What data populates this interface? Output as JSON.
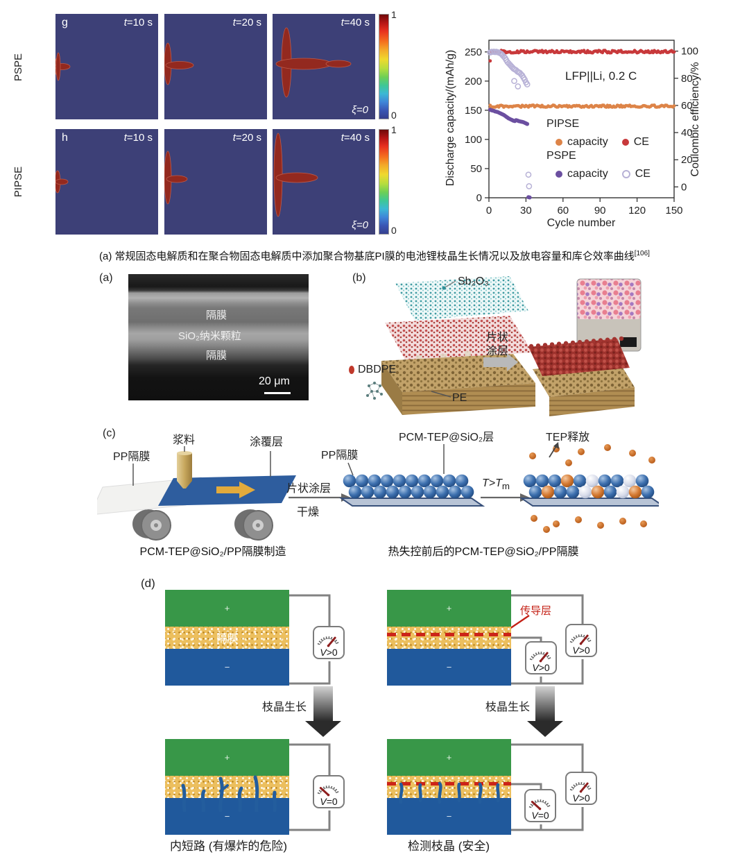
{
  "sim": {
    "rows": [
      {
        "row_label": "PSPE",
        "panel_letter": "g"
      },
      {
        "row_label": "PIPSE",
        "panel_letter": "h"
      }
    ],
    "time_labels": [
      "t=10 s",
      "t=20 s",
      "t=40 s"
    ],
    "xi_label": "ξ=0",
    "colorbar_top": "1",
    "colorbar_bottom": "0"
  },
  "chart_data": {
    "type": "scatter",
    "annotation": "LFP||Li, 0.2 C",
    "xlabel": "Cycle number",
    "ylabel_left": "Discharge capacity/(mAh/g)",
    "ylabel_right": "Coulombic efficiency/%",
    "xlim": [
      0,
      150
    ],
    "xticks": [
      0,
      30,
      60,
      90,
      120,
      150
    ],
    "ylim_left": [
      0,
      270
    ],
    "yticks_left": [
      0,
      50,
      100,
      150,
      200,
      250
    ],
    "ylim_right": [
      -8,
      108
    ],
    "yticks_right": [
      0,
      20,
      40,
      60,
      80,
      100
    ],
    "grid": false,
    "legend_position": "center-right",
    "legend": {
      "group1": "PIPSE",
      "group2": "PSPE",
      "capacity_label": "capacity",
      "ce_label": "CE"
    },
    "series": [
      {
        "name": "PIPSE capacity",
        "axis": "left",
        "marker": "filled",
        "color": "#dd8448",
        "size": 2.4,
        "flat": {
          "from": 1,
          "to": 150,
          "value": 157,
          "jitter": 1.8
        },
        "points": [
          [
            1,
            153.5
          ],
          [
            2,
            155.5
          ]
        ]
      },
      {
        "name": "PIPSE CE",
        "axis": "right",
        "marker": "filled",
        "color": "#c8393b",
        "size": 2.4,
        "flat": {
          "from": 2,
          "to": 150,
          "value": 99.6,
          "jitter": 0.9
        },
        "points": [
          [
            1,
            92.8
          ]
        ]
      },
      {
        "name": "PSPE capacity",
        "axis": "left",
        "marker": "filled",
        "color": "#6b4fa0",
        "size": 2.9,
        "points": [
          [
            1,
            151
          ],
          [
            2,
            150
          ],
          [
            3,
            149.5
          ],
          [
            4,
            149
          ],
          [
            5,
            148
          ],
          [
            6,
            147.5
          ],
          [
            7,
            147
          ],
          [
            8,
            146
          ],
          [
            9,
            145
          ],
          [
            10,
            144
          ],
          [
            11,
            143
          ],
          [
            12,
            142
          ],
          [
            13,
            140.5
          ],
          [
            14,
            139
          ],
          [
            15,
            137.5
          ],
          [
            16,
            136
          ],
          [
            17,
            135
          ],
          [
            18,
            134
          ],
          [
            19,
            133
          ],
          [
            20,
            132
          ],
          [
            21,
            131.5
          ],
          [
            22,
            133
          ],
          [
            23,
            132.5
          ],
          [
            24,
            131.5
          ],
          [
            25,
            131
          ],
          [
            26,
            130.5
          ],
          [
            27,
            130
          ],
          [
            28,
            129.5
          ],
          [
            29,
            128.5
          ],
          [
            30,
            127.5
          ],
          [
            31,
            126.5
          ],
          [
            32,
            1
          ],
          [
            33,
            0.5
          ]
        ]
      },
      {
        "name": "PSPE CE",
        "axis": "right",
        "marker": "open",
        "color": "#b7b1d6",
        "size": 3.6,
        "points": [
          [
            1,
            99
          ],
          [
            2,
            99.5
          ],
          [
            3,
            99.4
          ],
          [
            4,
            99.6
          ],
          [
            5,
            99.3
          ],
          [
            6,
            99.5
          ],
          [
            7,
            99.2
          ],
          [
            8,
            99
          ],
          [
            9,
            98.5
          ],
          [
            10,
            98
          ],
          [
            11,
            97
          ],
          [
            12,
            96
          ],
          [
            13,
            95
          ],
          [
            14,
            93.5
          ],
          [
            15,
            92
          ],
          [
            16,
            91
          ],
          [
            17,
            90
          ],
          [
            18,
            89
          ],
          [
            19,
            88
          ],
          [
            20,
            87
          ],
          [
            21,
            86.5
          ],
          [
            20.5,
            78
          ],
          [
            22,
            86
          ],
          [
            23,
            85
          ],
          [
            23.5,
            74
          ],
          [
            24,
            84.5
          ],
          [
            25,
            84
          ],
          [
            26,
            83
          ],
          [
            27,
            82
          ],
          [
            28,
            80.5
          ],
          [
            29,
            79
          ],
          [
            30,
            77
          ],
          [
            31,
            75.5
          ],
          [
            32,
            9
          ],
          [
            32.5,
            0.5
          ]
        ]
      }
    ]
  },
  "caption_a": {
    "text": "(a) 常规固态电解质和在聚合物固态电解质中添加聚合物基底PI膜的电池锂枝晶生长情况以及放电容量和库仑效率曲线",
    "sup": "[106]"
  },
  "panel_a": {
    "label": "(a)",
    "layer_top": "隔膜",
    "layer_mid": "SiO₂纳米颗粒",
    "layer_bottom": "隔膜",
    "scale_text": "20 μm"
  },
  "panel_b": {
    "label": "(b)",
    "sb2o3": "Sb₂O₃",
    "dbdpe": "DBDPE",
    "pe": "PE",
    "arrow_line1": "片状",
    "arrow_line2": "涂层"
  },
  "panel_c": {
    "label": "(c)",
    "pp_sep_left": "PP隔膜",
    "slurry": "浆料",
    "coating_layer": "涂覆层",
    "arrow_top": "片状涂层",
    "arrow_bottom": "干燥",
    "pp_sep_mid": "PP隔膜",
    "pcm_layer": "PCM-TEP@SiO₂层",
    "t_condition": "T>T",
    "t_condition_sub": "m",
    "tep_release": "TEP释放",
    "caption_left": "PCM-TEP@SiO₂/PP隔膜制造",
    "caption_right": "热失控前后的PCM-TEP@SiO₂/PP隔膜"
  },
  "panel_d": {
    "label": "(d)",
    "separator_label": "隔膜",
    "conductive_label": "传导层",
    "dendrite_growth": "枝晶生长",
    "plus": "+",
    "minus": "−",
    "meter_tl": "V>0",
    "meter_tr_small": "V>0",
    "meter_tr_big": "V>0",
    "meter_bl": "V=0",
    "meter_br_small": "V=0",
    "meter_br_big": "V>0",
    "caption_left": "内短路 (有爆炸的危险)",
    "caption_right": "检测枝晶 (安全)"
  }
}
